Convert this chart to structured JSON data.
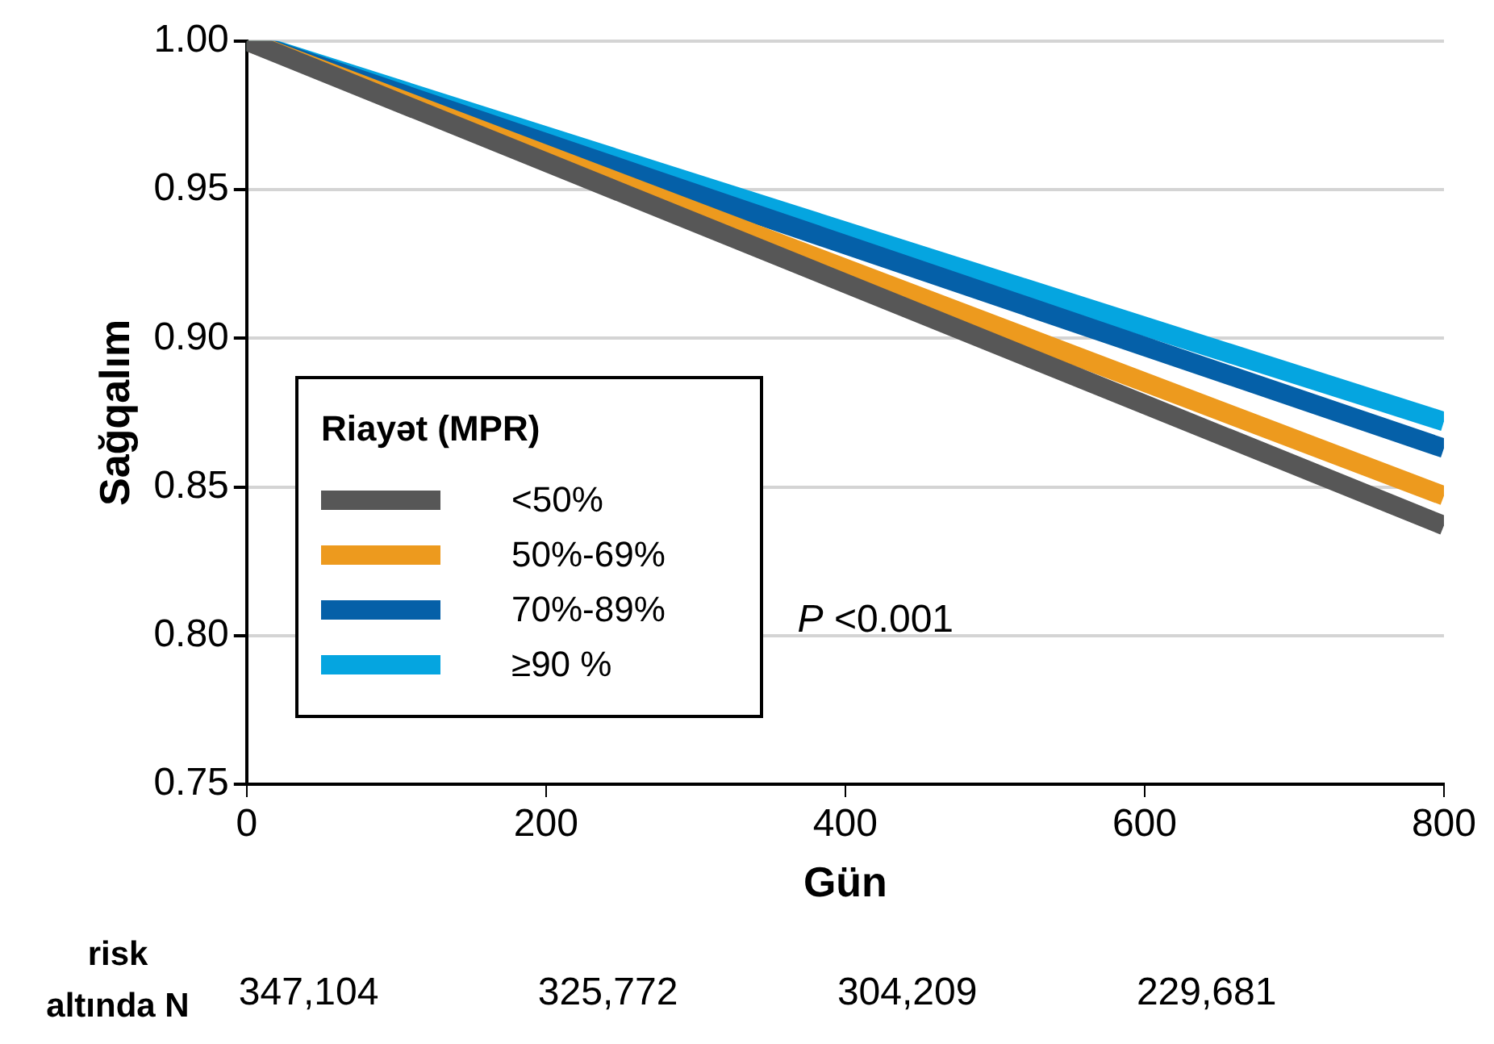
{
  "chart_data": {
    "type": "line",
    "xlabel": "Gün",
    "ylabel": "Sağqalım",
    "legend_title": "Riayət (MPR)",
    "legend": "left",
    "grid": "y",
    "marker": "none",
    "line_style": "solid",
    "x": [
      0,
      800
    ],
    "xlim": [
      0,
      800
    ],
    "xticks": [
      0,
      200,
      400,
      600,
      800
    ],
    "ylim": [
      0.75,
      1.0
    ],
    "yticks": [
      {
        "value": 0.75,
        "label": "0.75"
      },
      {
        "value": 0.8,
        "label": "0.80"
      },
      {
        "value": 0.85,
        "label": "0.85"
      },
      {
        "value": 0.9,
        "label": "0.90"
      },
      {
        "value": 0.95,
        "label": "0.95"
      },
      {
        "value": 1.0,
        "label": "1.00"
      }
    ],
    "series": [
      {
        "name": "<50%",
        "color": "#575757",
        "values": [
          1.0,
          0.837
        ]
      },
      {
        "name": "50%-69%",
        "color": "#ed9a1e",
        "values": [
          1.0,
          0.847
        ]
      },
      {
        "name": "70%-89%",
        "color": "#0560a8",
        "values": [
          1.0,
          0.863
        ]
      },
      {
        "name": "≥90 %",
        "color": "#05a5e0",
        "values": [
          1.0,
          0.872
        ]
      }
    ],
    "annotations": [
      "P <0.001",
      "risk altında N",
      "347,104",
      "325,772",
      "304,209",
      "229,681"
    ]
  }
}
